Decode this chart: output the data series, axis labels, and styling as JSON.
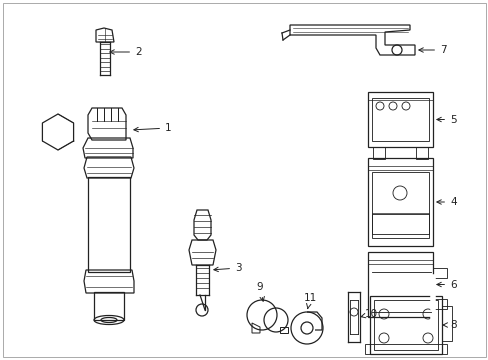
{
  "bg_color": "#ffffff",
  "line_color": "#222222",
  "figsize": [
    4.89,
    3.6
  ],
  "dpi": 100,
  "border_color": "#cccccc"
}
